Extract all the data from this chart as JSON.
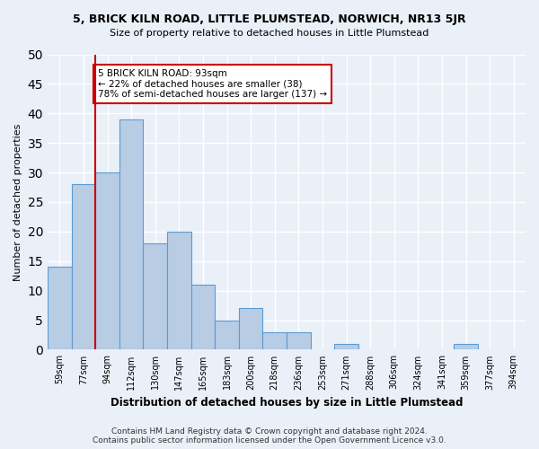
{
  "title": "5, BRICK KILN ROAD, LITTLE PLUMSTEAD, NORWICH, NR13 5JR",
  "subtitle": "Size of property relative to detached houses in Little Plumstead",
  "xlabel": "Distribution of detached houses by size in Little Plumstead",
  "ylabel": "Number of detached properties",
  "bar_values": [
    14,
    28,
    30,
    39,
    18,
    20,
    11,
    5,
    7,
    3,
    3,
    0,
    1,
    0,
    0,
    0,
    0,
    1,
    0,
    0
  ],
  "bin_labels": [
    "59sqm",
    "77sqm",
    "94sqm",
    "112sqm",
    "130sqm",
    "147sqm",
    "165sqm",
    "183sqm",
    "200sqm",
    "218sqm",
    "236sqm",
    "253sqm",
    "271sqm",
    "288sqm",
    "306sqm",
    "324sqm",
    "341sqm",
    "359sqm",
    "377sqm",
    "394sqm"
  ],
  "bar_color": "#b8cce4",
  "bar_edge_color": "#5b9bd5",
  "property_line_color": "#cc0000",
  "annotation_text": "5 BRICK KILN ROAD: 93sqm\n← 22% of detached houses are smaller (38)\n78% of semi-detached houses are larger (137) →",
  "annotation_box_color": "#cc0000",
  "annotation_bg": "#ffffff",
  "ylim": [
    0,
    50
  ],
  "yticks": [
    0,
    5,
    10,
    15,
    20,
    25,
    30,
    35,
    40,
    45,
    50
  ],
  "footer_line1": "Contains HM Land Registry data © Crown copyright and database right 2024.",
  "footer_line2": "Contains public sector information licensed under the Open Government Licence v3.0.",
  "bg_color": "#eaf0f8",
  "grid_color": "#ffffff"
}
